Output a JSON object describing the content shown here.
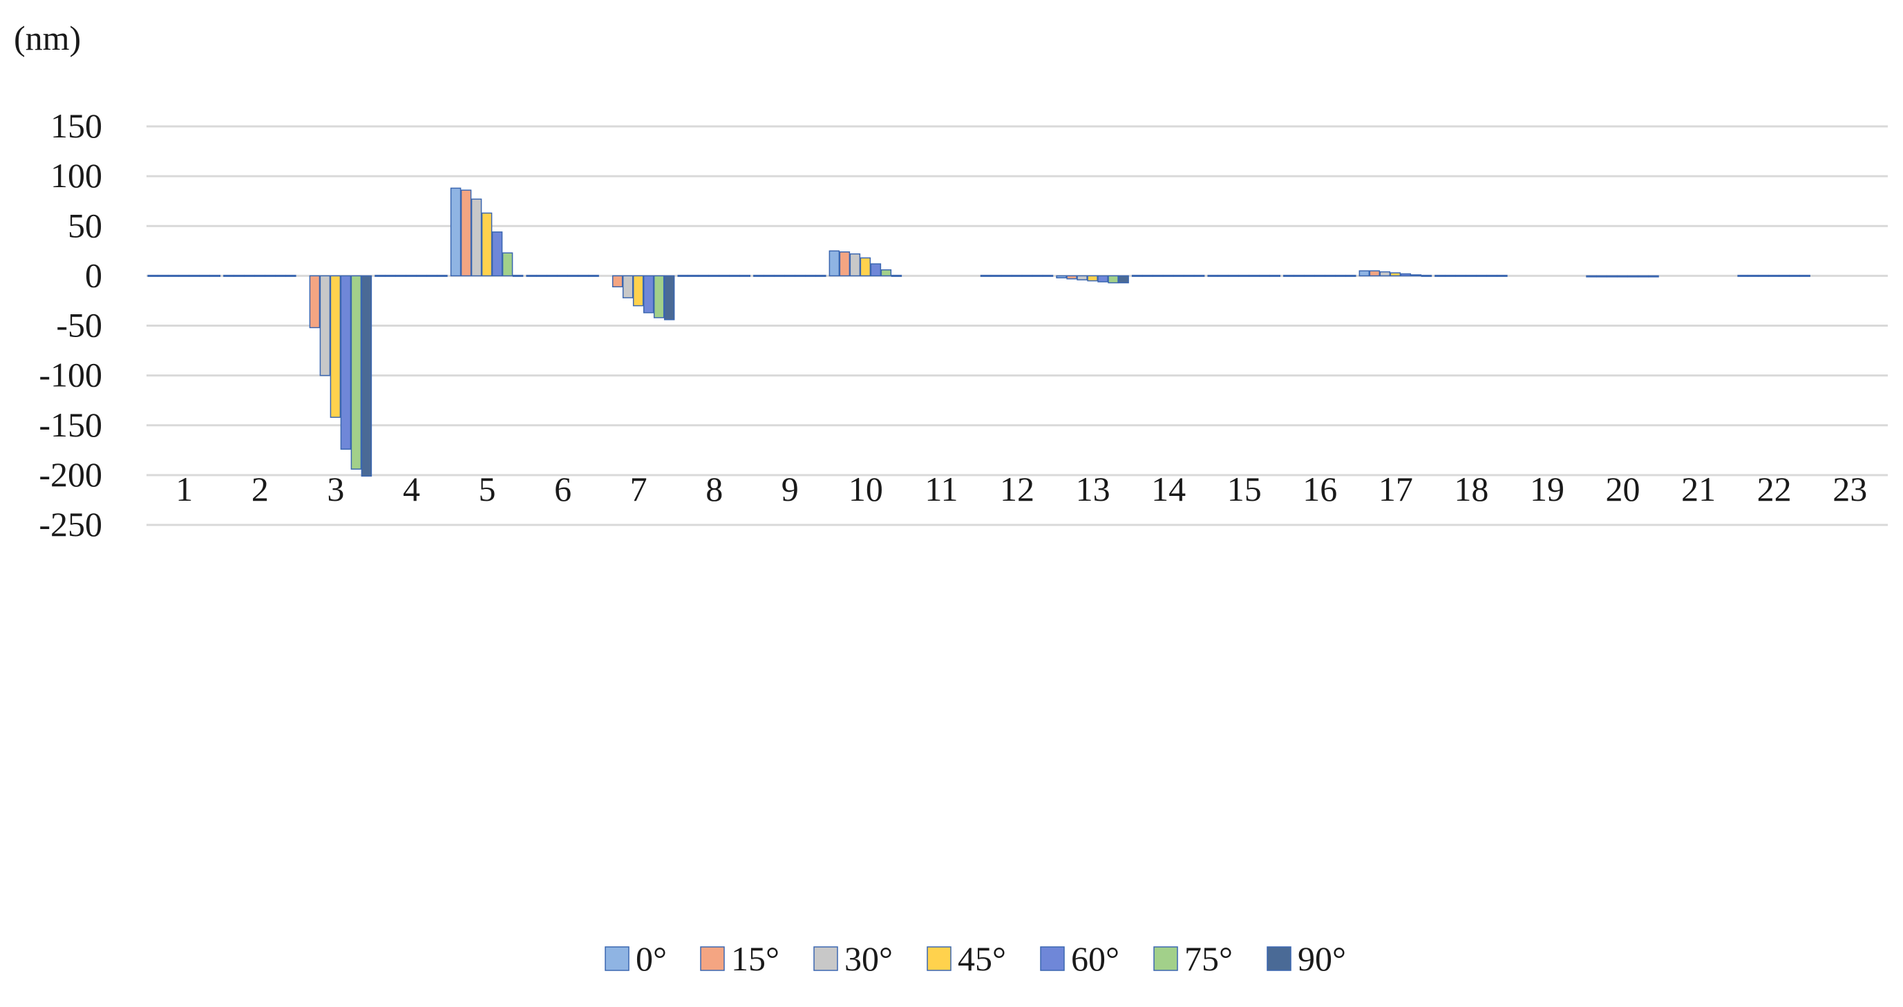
{
  "chart_data": {
    "type": "bar",
    "title": "",
    "xlabel": "",
    "ylabel": "(nm)",
    "ylim": [
      -250,
      150
    ],
    "yticks": [
      150,
      100,
      50,
      0,
      -50,
      -100,
      -150,
      -200,
      -250
    ],
    "grid": true,
    "legend_position": "bottom",
    "categories": [
      "1",
      "2",
      "3",
      "4",
      "5",
      "6",
      "7",
      "8",
      "9",
      "10",
      "11",
      "12",
      "13",
      "14",
      "15",
      "16",
      "17",
      "18",
      "19",
      "20",
      "21",
      "22",
      "23"
    ],
    "series": [
      {
        "name": "0°",
        "color": "#8fb4e3",
        "values": [
          0.5,
          0.5,
          0,
          0.5,
          88,
          0.5,
          0,
          0.5,
          0.5,
          25,
          0,
          0.5,
          -2,
          0.5,
          0.5,
          0.5,
          5,
          0.5,
          0,
          -0.5,
          0,
          0.5,
          0
        ]
      },
      {
        "name": "15°",
        "color": "#f4a582",
        "values": [
          0.5,
          0.5,
          -52,
          0.5,
          86,
          0.5,
          -11,
          0.5,
          0.5,
          24,
          0,
          0.5,
          -3,
          0.5,
          0.5,
          0.5,
          5,
          0.5,
          0,
          -0.5,
          0,
          0.5,
          0
        ]
      },
      {
        "name": "30°",
        "color": "#c8c8c8",
        "values": [
          0.5,
          0.5,
          -100,
          0.5,
          77,
          0.5,
          -22,
          0.5,
          0.5,
          22,
          0,
          0.5,
          -4,
          0.5,
          0.5,
          0.5,
          4,
          0.5,
          0,
          -1,
          0,
          0.5,
          0
        ]
      },
      {
        "name": "45°",
        "color": "#ffd24d",
        "values": [
          0.5,
          0.5,
          -142,
          0.5,
          63,
          0.5,
          -30,
          0.5,
          0.5,
          18,
          0,
          0.5,
          -5,
          0.5,
          0.5,
          0.5,
          3,
          0.5,
          0,
          -1,
          0,
          0.5,
          0
        ]
      },
      {
        "name": "60°",
        "color": "#6f87d8",
        "values": [
          0.5,
          0.5,
          -174,
          0.5,
          44,
          0.5,
          -37,
          0.5,
          0.5,
          12,
          0,
          0.5,
          -6,
          0.5,
          0.5,
          0.5,
          2,
          0.5,
          0,
          -1,
          0,
          0.5,
          0
        ]
      },
      {
        "name": "75°",
        "color": "#a2d08a",
        "values": [
          0.5,
          0.5,
          -194,
          0.5,
          23,
          0.5,
          -42,
          0.5,
          0.5,
          6,
          0,
          0.5,
          -7,
          0.5,
          0.5,
          0.5,
          1,
          0.5,
          0,
          -1,
          0,
          0.5,
          0
        ]
      },
      {
        "name": "90°",
        "color": "#4a6a96",
        "values": [
          0.5,
          0.5,
          -201,
          0.5,
          0.5,
          0.5,
          -44,
          0.5,
          0.5,
          0.5,
          0,
          0.5,
          -7,
          0.5,
          0.5,
          0.5,
          0.5,
          0.5,
          0,
          -1,
          0,
          0.5,
          0
        ]
      }
    ]
  }
}
